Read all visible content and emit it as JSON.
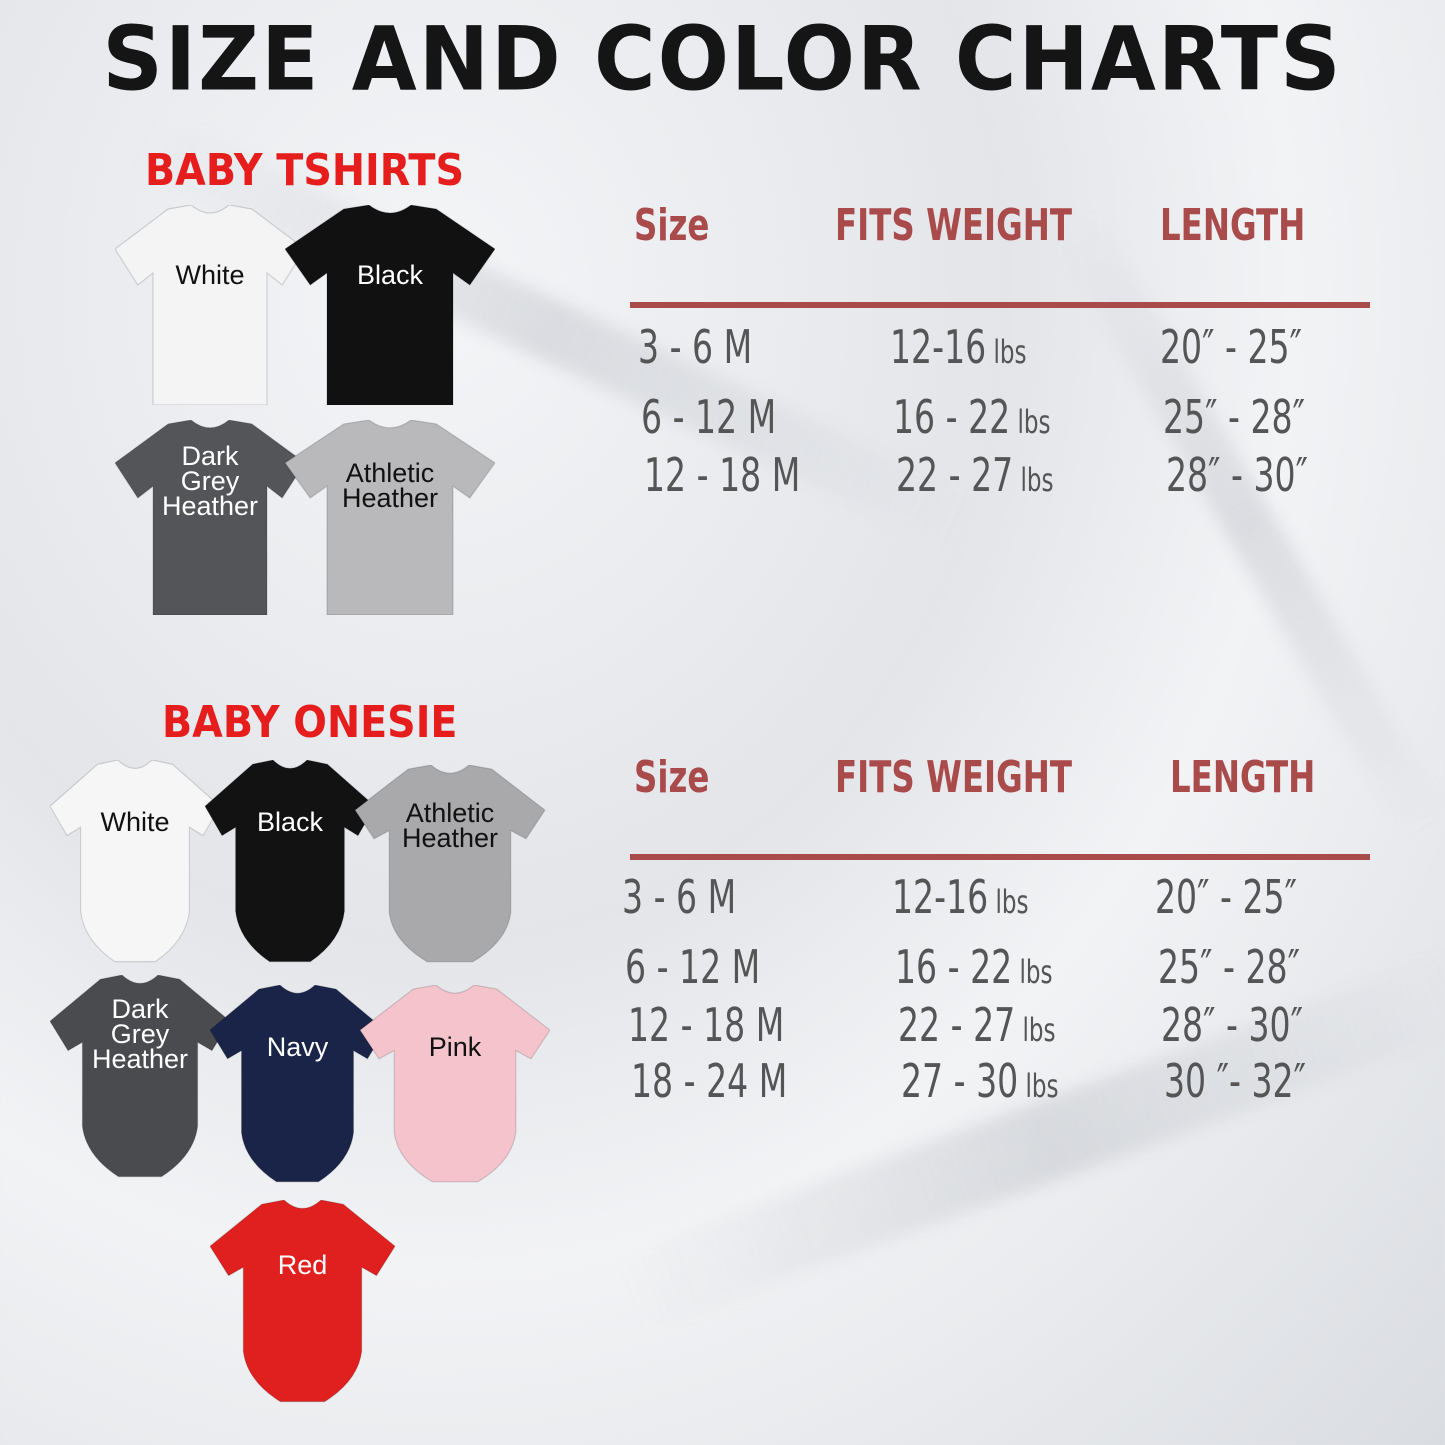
{
  "title": "SIZE AND COLOR CHARTS",
  "tshirts": {
    "heading": "BABY TSHIRTS",
    "colors": [
      {
        "name": "White",
        "hex": "#f4f4f4",
        "text": "#111"
      },
      {
        "name": "Black",
        "hex": "#111111",
        "text": "#fff"
      },
      {
        "name": "Dark Grey Heather",
        "hex": "#545559",
        "text": "#fff"
      },
      {
        "name": "Athletic Heather",
        "hex": "#b9b9bb",
        "text": "#111"
      }
    ]
  },
  "onesie": {
    "heading": "BABY ONESIE",
    "colors": [
      {
        "name": "White",
        "hex": "#f6f6f6",
        "text": "#111"
      },
      {
        "name": "Black",
        "hex": "#121212",
        "text": "#fff"
      },
      {
        "name": "Athletic Heather",
        "hex": "#a9a9ab",
        "text": "#111"
      },
      {
        "name": "Dark Grey Heather",
        "hex": "#4a4b4e",
        "text": "#fff"
      },
      {
        "name": "Navy",
        "hex": "#1a2448",
        "text": "#fff"
      },
      {
        "name": "Pink",
        "hex": "#f4c3cc",
        "text": "#111"
      },
      {
        "name": "Red",
        "hex": "#e0201f",
        "text": "#fff"
      }
    ]
  },
  "tables": [
    {
      "headers": [
        "Size",
        "FITS WEIGHT",
        "LENGTH"
      ],
      "rows": [
        [
          "3 - 6 M",
          "12-16",
          "20″ - 25″"
        ],
        [
          "6 - 12 M",
          "16 - 22",
          "25″ - 28″"
        ],
        [
          "12 - 18 M",
          "22 - 27",
          "28″ - 30″"
        ]
      ]
    },
    {
      "headers": [
        "Size",
        "FITS WEIGHT",
        "LENGTH"
      ],
      "rows": [
        [
          "3 - 6 M",
          "12-16",
          "20″ - 25″"
        ],
        [
          "6 - 12 M",
          "16 - 22",
          "25″ - 28″"
        ],
        [
          "12 - 18 M",
          "22 - 27",
          "28″ - 30″"
        ],
        [
          "18 - 24 M",
          "27 - 30",
          "30 ″- 32″"
        ]
      ]
    }
  ],
  "weight_unit": "lbs",
  "colors": {
    "heading_red": "#e51d1d",
    "table_accent": "#a94a4b",
    "table_text": "#555555"
  }
}
